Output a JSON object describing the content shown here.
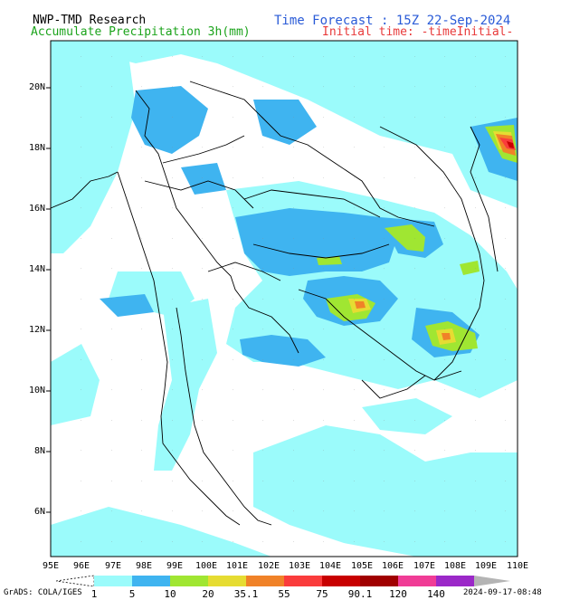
{
  "header": {
    "model": "NWP-TMD Research",
    "product": "Accumulate Precipitation 3h(mm)",
    "forecast": "Time Forecast : 15Z 22-Sep-2024",
    "initial": "Initial time: -timeInitial-"
  },
  "axes": {
    "lat_labels": [
      "20N",
      "18N",
      "16N",
      "14N",
      "12N",
      "10N",
      "8N",
      "6N"
    ],
    "lon_labels": [
      "95E",
      "96E",
      "97E",
      "98E",
      "99E",
      "100E",
      "101E",
      "102E",
      "103E",
      "104E",
      "105E",
      "106E",
      "107E",
      "108E",
      "109E",
      "110E"
    ]
  },
  "colorbar": {
    "levels": [
      "1",
      "5",
      "10",
      "20",
      "35.1",
      "55",
      "75",
      "90.1",
      "120",
      "140"
    ],
    "colors": [
      "#9bfbfb",
      "#3fb4f0",
      "#a0e632",
      "#e6dc32",
      "#f08228",
      "#fa3c3c",
      "#c80000",
      "#a00000",
      "#f03c96",
      "#9b28c8"
    ]
  },
  "footer": {
    "software": "GrADS: COLA/IGES",
    "timestamp": "2024-09-17-08:48"
  }
}
